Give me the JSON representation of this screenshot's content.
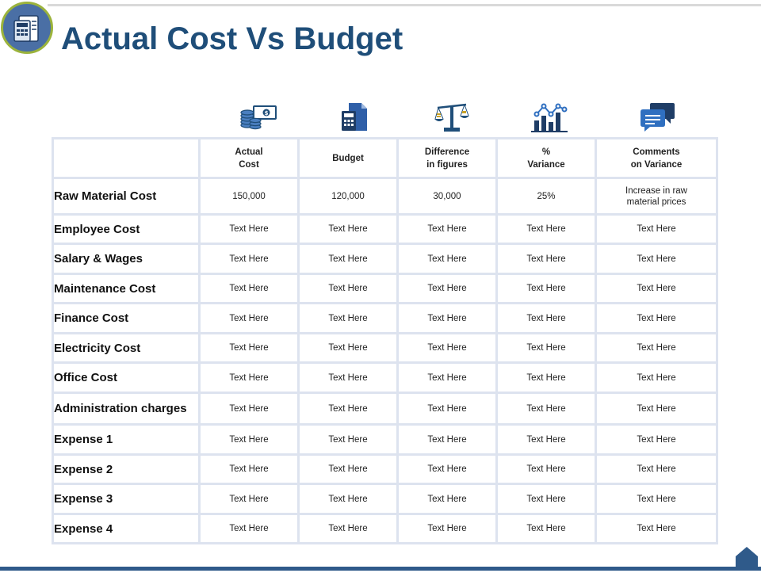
{
  "title": "Actual Cost Vs Budget",
  "colors": {
    "title": "#1f4e79",
    "accent_blue": "#2f5a8a",
    "logo_ring": "#9bb33c",
    "grid_line": "#dde3ef"
  },
  "header_icons": [
    "coins-cash-icon",
    "calculator-document-icon",
    "balance-scale-icon",
    "bar-chart-trend-icon",
    "chat-bubbles-icon"
  ],
  "table": {
    "headers": [
      {
        "line1": "Actual",
        "line2": "Cost"
      },
      {
        "line1": "Budget",
        "line2": ""
      },
      {
        "line1": "Difference",
        "line2": "in figures"
      },
      {
        "line1": "%",
        "line2": "Variance"
      },
      {
        "line1": "Comments",
        "line2": "on Variance"
      }
    ],
    "rows": [
      {
        "label": "Raw Material Cost",
        "cells": [
          "150,000",
          "120,000",
          "30,000",
          "25%",
          "Increase in raw material prices"
        ]
      },
      {
        "label": "Employee Cost",
        "cells": [
          "Text Here",
          "Text Here",
          "Text Here",
          "Text Here",
          "Text Here"
        ]
      },
      {
        "label": "Salary & Wages",
        "cells": [
          "Text Here",
          "Text Here",
          "Text Here",
          "Text Here",
          "Text Here"
        ]
      },
      {
        "label": "Maintenance Cost",
        "cells": [
          "Text Here",
          "Text Here",
          "Text Here",
          "Text Here",
          "Text Here"
        ]
      },
      {
        "label": "Finance Cost",
        "cells": [
          "Text Here",
          "Text Here",
          "Text Here",
          "Text Here",
          "Text Here"
        ]
      },
      {
        "label": "Electricity Cost",
        "cells": [
          "Text Here",
          "Text Here",
          "Text Here",
          "Text Here",
          "Text Here"
        ]
      },
      {
        "label": "Office Cost",
        "cells": [
          "Text Here",
          "Text Here",
          "Text Here",
          "Text Here",
          "Text Here"
        ]
      },
      {
        "label": "Administration charges",
        "cells": [
          "Text Here",
          "Text Here",
          "Text Here",
          "Text Here",
          "Text Here"
        ]
      },
      {
        "label": "Expense 1",
        "cells": [
          "Text Here",
          "Text Here",
          "Text Here",
          "Text Here",
          "Text Here"
        ]
      },
      {
        "label": "Expense 2",
        "cells": [
          "Text Here",
          "Text Here",
          "Text Here",
          "Text Here",
          "Text Here"
        ]
      },
      {
        "label": "Expense 3",
        "cells": [
          "Text Here",
          "Text Here",
          "Text Here",
          "Text Here",
          "Text Here"
        ]
      },
      {
        "label": "Expense 4",
        "cells": [
          "Text Here",
          "Text Here",
          "Text Here",
          "Text Here",
          "Text Here"
        ]
      }
    ]
  }
}
